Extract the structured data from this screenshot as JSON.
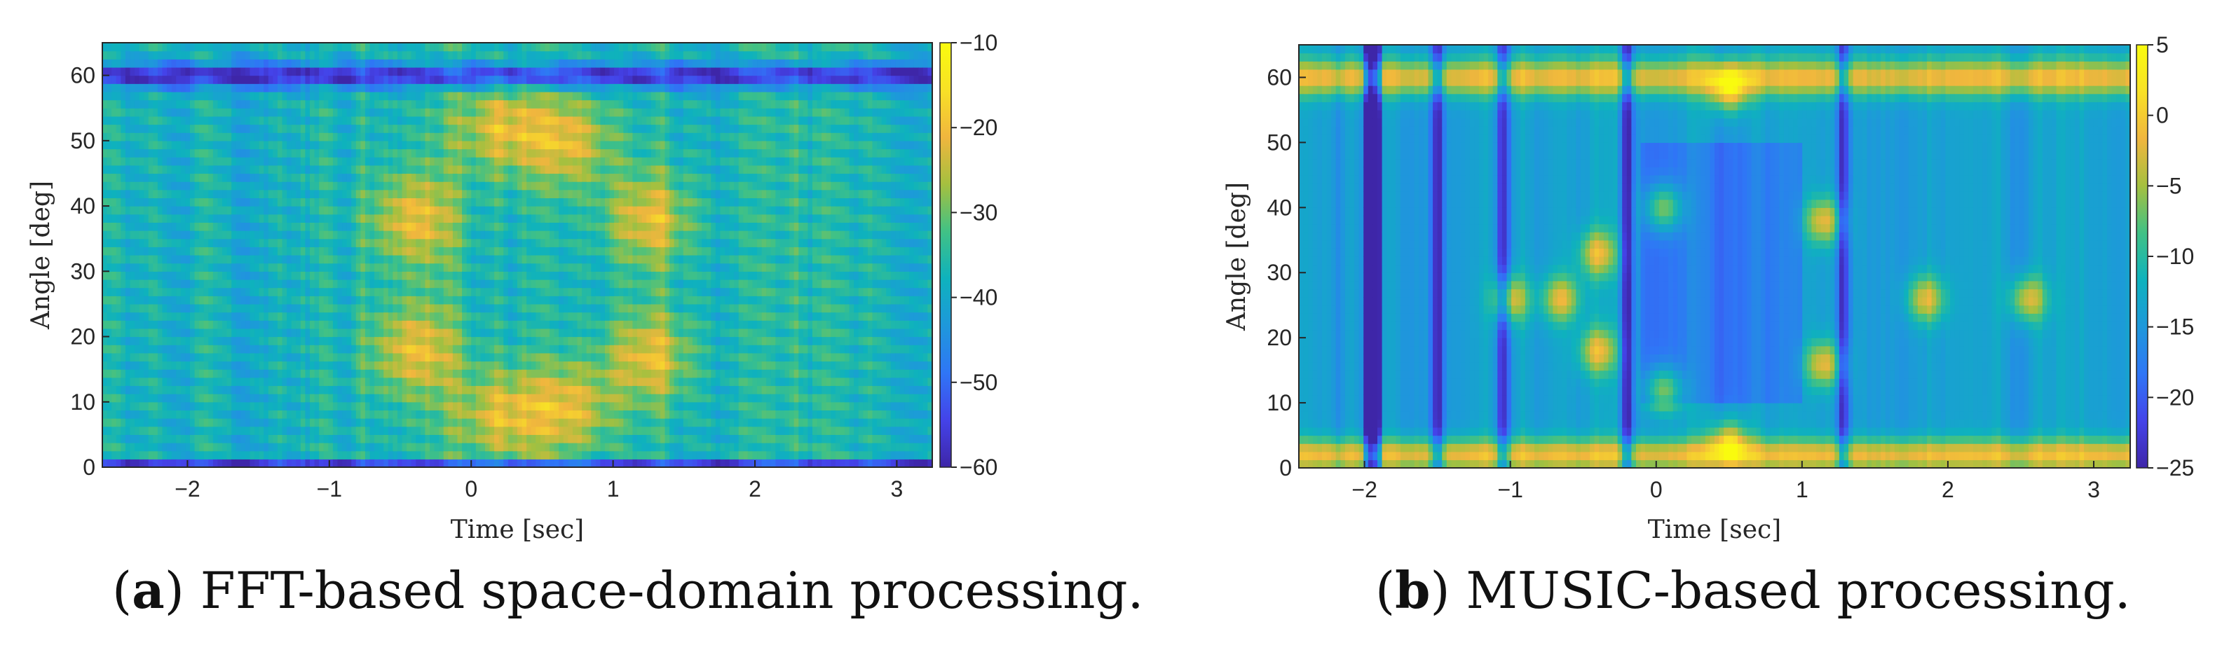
{
  "colors": {
    "parula": [
      "#3e26a8",
      "#4443e9",
      "#2f76f6",
      "#1e98db",
      "#0eb2bd",
      "#41c185",
      "#a5c03f",
      "#f0b63e",
      "#f8e126",
      "#f9fb0e"
    ],
    "axis": "#262626"
  },
  "chart_data": [
    {
      "type": "heatmap",
      "panel": "a",
      "caption_label": "a",
      "caption_text": "FFT-based space-domain processing.",
      "xlabel": "Time [sec]",
      "ylabel": "Angle [deg]",
      "xlim": [
        -2.6,
        3.25
      ],
      "ylim": [
        0,
        65
      ],
      "xticks": [
        -2,
        -1,
        0,
        1,
        2,
        3
      ],
      "xtick_labels": [
        "−2",
        "−1",
        "0",
        "1",
        "2",
        "3"
      ],
      "yticks": [
        0,
        10,
        20,
        30,
        40,
        50,
        60
      ],
      "ytick_labels": [
        "0",
        "10",
        "20",
        "30",
        "40",
        "50",
        "60"
      ],
      "colorbar_lim": [
        -60,
        -10
      ],
      "colorbar_ticks": [
        -10,
        -20,
        -30,
        -40,
        -50,
        -60
      ],
      "colorbar_tick_labels": [
        "−10",
        "−20",
        "−30",
        "−40",
        "−50",
        "−60"
      ],
      "features": {
        "null_band_angle": 60,
        "target_track_peaks": [
          {
            "time": 0.2,
            "angle": 52
          },
          {
            "time": 0.7,
            "angle": 50
          },
          {
            "time": 0.2,
            "angle": 8
          },
          {
            "time": 0.7,
            "angle": 9
          },
          {
            "time": 1.25,
            "angle": 38
          },
          {
            "time": 1.25,
            "angle": 17
          },
          {
            "time": -0.4,
            "angle": 38
          },
          {
            "time": -0.4,
            "angle": 18
          }
        ]
      }
    },
    {
      "type": "heatmap",
      "panel": "b",
      "caption_label": "b",
      "caption_text": "MUSIC-based processing.",
      "xlabel": "Time [sec]",
      "ylabel": "Angle [deg]",
      "xlim": [
        -2.45,
        3.25
      ],
      "ylim": [
        0,
        65
      ],
      "xticks": [
        -2,
        -1,
        0,
        1,
        2,
        3
      ],
      "xtick_labels": [
        "−2",
        "−1",
        "0",
        "1",
        "2",
        "3"
      ],
      "yticks": [
        0,
        10,
        20,
        30,
        40,
        50,
        60
      ],
      "ytick_labels": [
        "0",
        "10",
        "20",
        "30",
        "40",
        "50",
        "60"
      ],
      "colorbar_lim": [
        -25,
        5
      ],
      "colorbar_ticks": [
        5,
        0,
        -5,
        -10,
        -15,
        -20,
        -25
      ],
      "colorbar_tick_labels": [
        "5",
        "0",
        "−5",
        "−10",
        "−15",
        "−20",
        "−25"
      ],
      "features": {
        "strong_band_angle": 60,
        "dark_columns_time": [
          -1.95,
          -1.5,
          -1.05,
          -0.2,
          1.28
        ],
        "target_track_peaks": [
          {
            "time": -1.0,
            "angle": 26
          },
          {
            "time": -0.65,
            "angle": 26
          },
          {
            "time": -0.4,
            "angle": 33
          },
          {
            "time": -0.4,
            "angle": 18
          },
          {
            "time": 0.05,
            "angle": 40
          },
          {
            "time": 0.05,
            "angle": 12
          },
          {
            "time": 0.5,
            "angle": 58
          },
          {
            "time": 0.5,
            "angle": 4
          },
          {
            "time": 1.15,
            "angle": 38
          },
          {
            "time": 1.15,
            "angle": 16
          },
          {
            "time": 1.85,
            "angle": 26
          },
          {
            "time": 2.55,
            "angle": 26
          }
        ]
      }
    }
  ]
}
